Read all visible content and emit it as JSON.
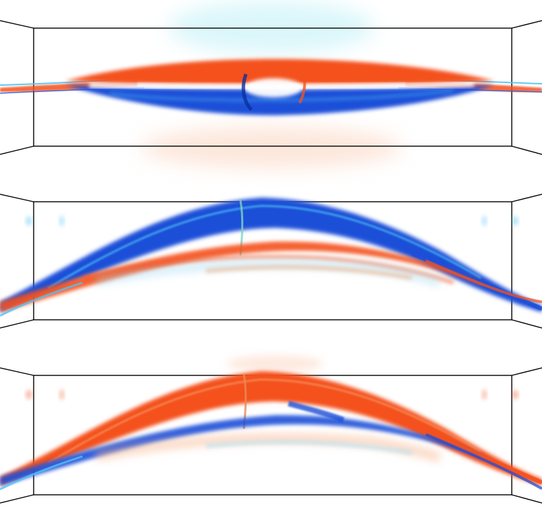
{
  "figure": {
    "panels": [
      {
        "name": "panel-top",
        "shape": "flat-lens",
        "upper_color": "#f4511e",
        "lower_color": "#1e4fd8",
        "glow_upper": "#7fe3f0",
        "glow_lower": "#f8b48a"
      },
      {
        "name": "panel-middle",
        "shape": "arch",
        "upper_color": "#1e4fd8",
        "lower_color": "#f4511e",
        "accent": "#4fc3f7"
      },
      {
        "name": "panel-bottom",
        "shape": "arch",
        "upper_color": "#f4511e",
        "lower_color": "#1e4fd8",
        "accent": "#4fc3f7"
      }
    ],
    "colors": {
      "red": "#f4511e",
      "blue": "#1e4fd8",
      "cyan": "#4fc3f7",
      "white": "#ffffff",
      "frame": "#000000"
    }
  }
}
